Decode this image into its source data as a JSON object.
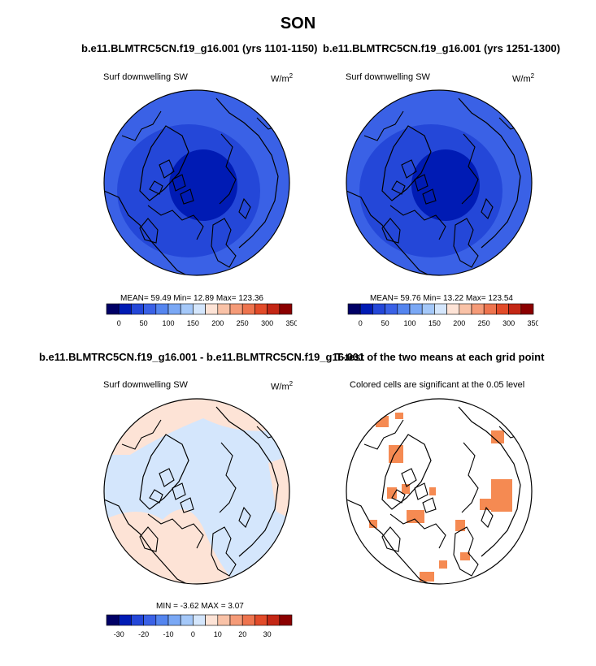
{
  "page": {
    "season": "SON"
  },
  "colors": {
    "abs_scale": [
      "#000066",
      "#001bb4",
      "#2447d8",
      "#3a61e6",
      "#5485ef",
      "#7aa8f5",
      "#a4c8f9",
      "#d4e6fc",
      "#fde3d6",
      "#f9c2a7",
      "#f59b78",
      "#ee744e",
      "#e24b29",
      "#c42715",
      "#8b0000"
    ],
    "diff_scale": [
      "#000066",
      "#001bb4",
      "#2447d8",
      "#3a61e6",
      "#5485ef",
      "#7aa8f5",
      "#a4c8f9",
      "#d4e6fc",
      "#fde3d6",
      "#f9c2a7",
      "#f59b78",
      "#ee744e",
      "#e24b29",
      "#c42715",
      "#8b0000"
    ],
    "signif_fill": "#f58a52"
  },
  "panels": [
    {
      "id": "panel-1",
      "title": "b.e11.BLMTRC5CN.f19_g16.001 (yrs 1101-1150)",
      "variable": "Surf downwelling SW",
      "units_base": "W/m",
      "units_exp": "2",
      "stats": "MEAN=  59.49  Min=  12.89  Max= 123.36"
    },
    {
      "id": "panel-2",
      "title": "b.e11.BLMTRC5CN.f19_g16.001 (yrs 1251-1300)",
      "variable": "Surf downwelling SW",
      "units_base": "W/m",
      "units_exp": "2",
      "stats": "MEAN=  59.76  Min=  13.22  Max= 123.54"
    },
    {
      "id": "panel-3",
      "title": "b.e11.BLMTRC5CN.f19_g16.001 - b.e11.BLMTRC5CN.f19_g16.001",
      "variable": "Surf downwelling SW",
      "units_base": "W/m",
      "units_exp": "2",
      "stats": "MIN =  -3.62  MAX =   3.07"
    },
    {
      "id": "panel-4",
      "title": "T-test of the two means at each grid point",
      "note": "Colored cells are significant at the 0.05 level"
    }
  ],
  "chart_data": [
    {
      "type": "heatmap",
      "title": "b.e11.BLMTRC5CN.f19_g16.001 (yrs 1101-1150)",
      "variable": "Surf downwelling SW",
      "units": "W/m2",
      "mean": 59.49,
      "min": 12.89,
      "max": 123.36,
      "colorbar_ticks": [
        "0",
        "50",
        "100",
        "150",
        "200",
        "250",
        "300",
        "350"
      ]
    },
    {
      "type": "heatmap",
      "title": "b.e11.BLMTRC5CN.f19_g16.001 (yrs 1251-1300)",
      "variable": "Surf downwelling SW",
      "units": "W/m2",
      "mean": 59.76,
      "min": 13.22,
      "max": 123.54,
      "colorbar_ticks": [
        "0",
        "50",
        "100",
        "150",
        "200",
        "250",
        "300",
        "350"
      ]
    },
    {
      "type": "heatmap",
      "title": "b.e11.BLMTRC5CN.f19_g16.001 - b.e11.BLMTRC5CN.f19_g16.001",
      "variable": "Surf downwelling SW",
      "units": "W/m2",
      "min": -3.62,
      "max": 3.07,
      "colorbar_ticks": [
        "-30",
        "-20",
        "-10",
        "0",
        "10",
        "20",
        "30"
      ]
    },
    {
      "type": "heatmap",
      "title": "T-test of the two means at each grid point",
      "note": "Colored cells are significant at the 0.05 level"
    }
  ]
}
